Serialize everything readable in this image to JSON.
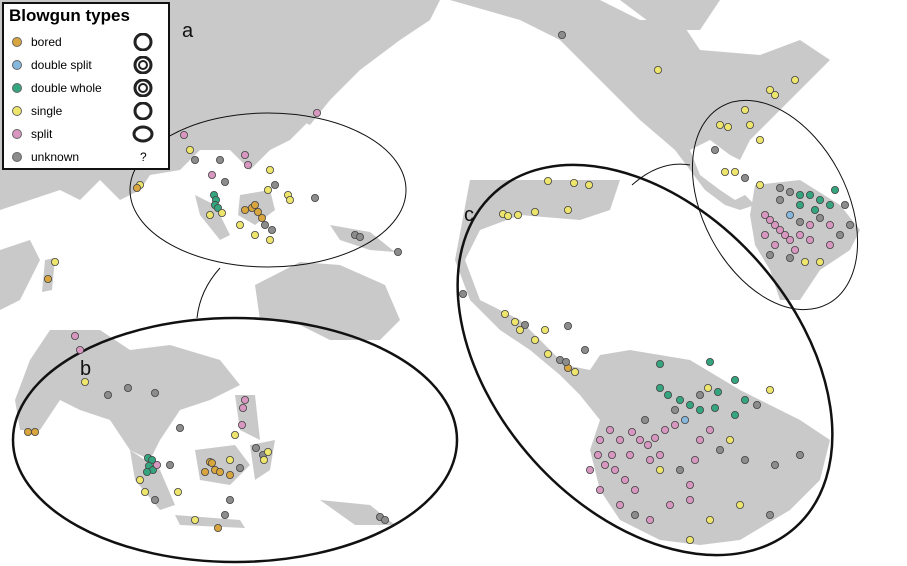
{
  "legend": {
    "title": "Blowgun types",
    "items": [
      {
        "label": "bored",
        "color": "#d9a53f",
        "symbol": "single-ring"
      },
      {
        "label": "double split",
        "color": "#86b7dd",
        "symbol": "double-ring"
      },
      {
        "label": "double whole",
        "color": "#35a57f",
        "symbol": "double-ring"
      },
      {
        "label": "single",
        "color": "#eee56c",
        "symbol": "single-ring"
      },
      {
        "label": "split",
        "color": "#d897c0",
        "symbol": "oval-ring"
      },
      {
        "label": "unknown",
        "color": "#8c8c8c",
        "symbol": "?"
      }
    ]
  },
  "panels": {
    "a": "a",
    "b": "b",
    "c": "c"
  },
  "colors": {
    "land": "#c9c9c9",
    "sea": "#ffffff"
  }
}
